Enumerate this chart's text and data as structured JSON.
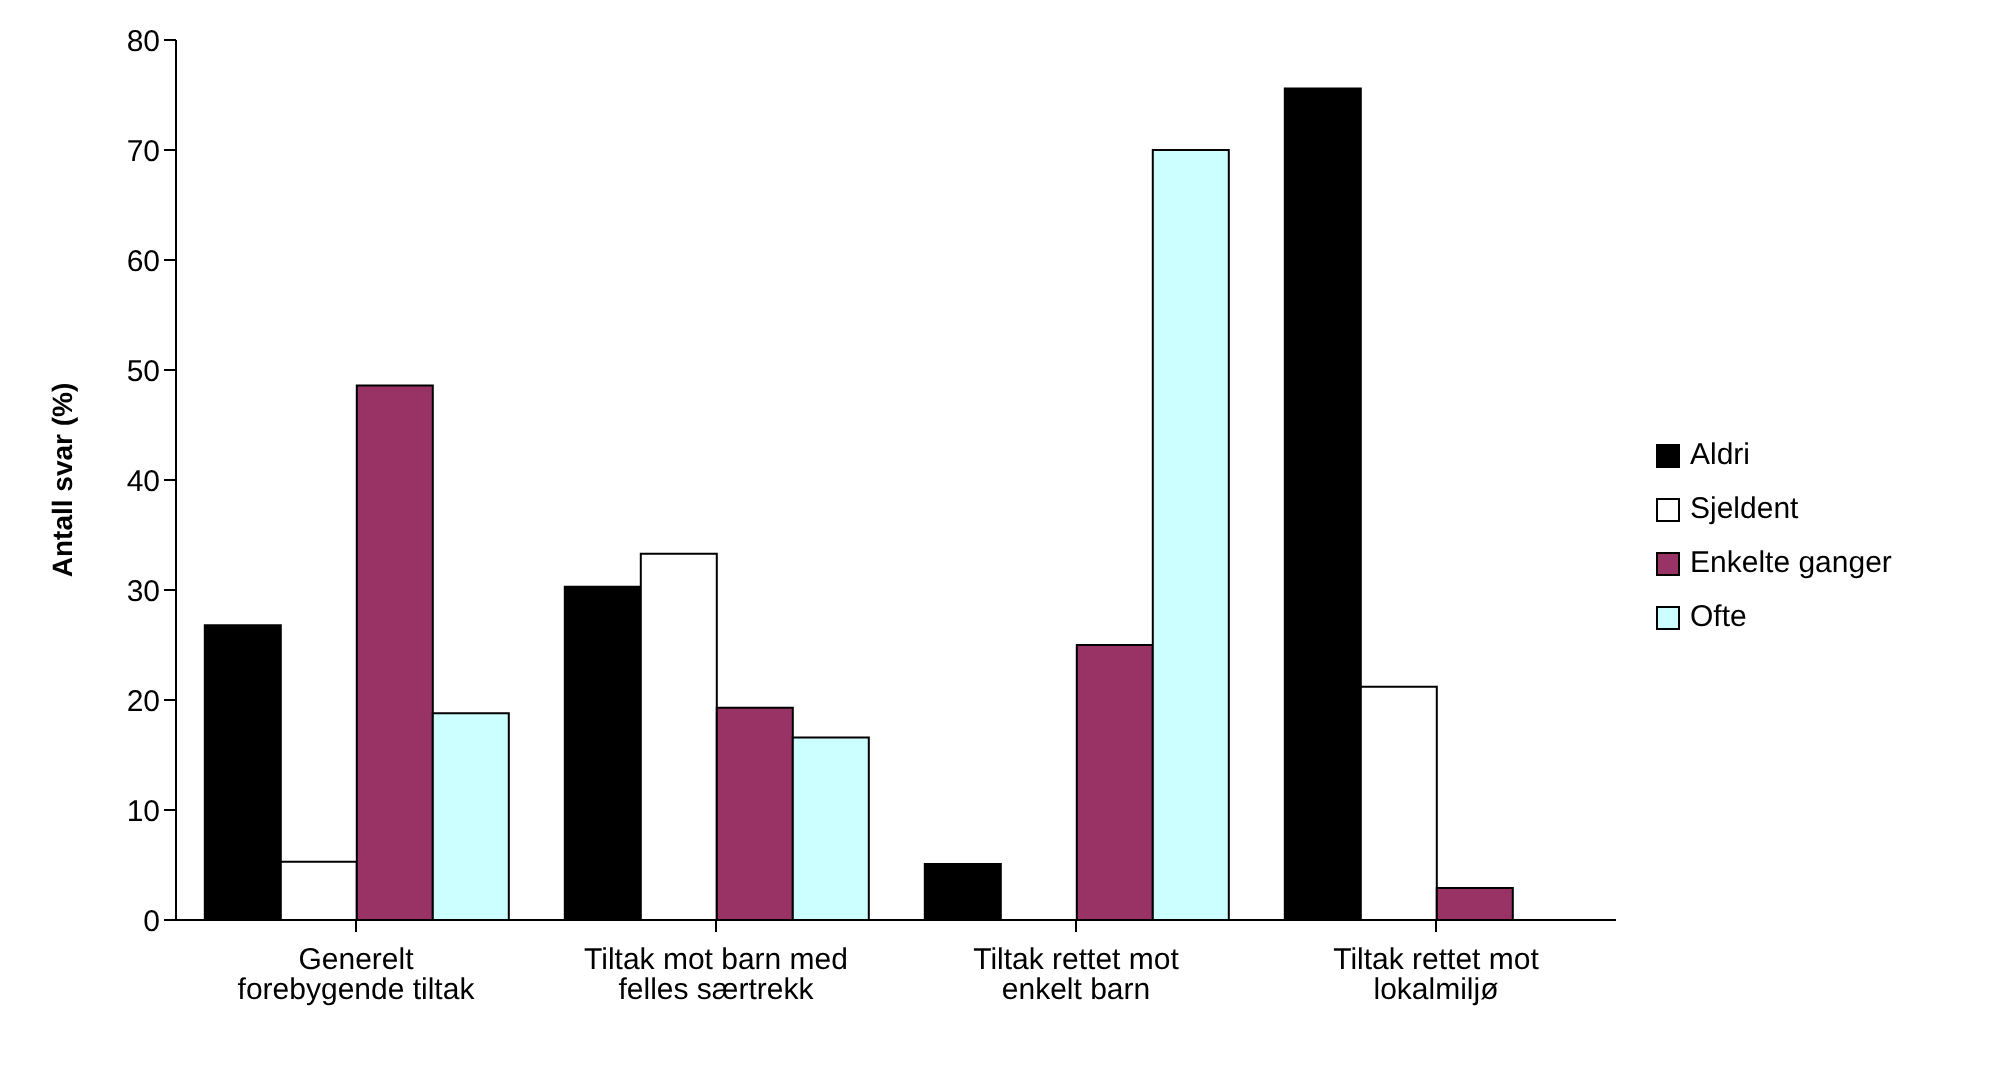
{
  "chart_data": {
    "type": "bar",
    "ylabel": "Antall svar (%)",
    "categories": [
      "Generelt forebygende tiltak",
      "Tiltak mot barn med felles særtrekk",
      "Tiltak rettet mot enkelt barn",
      "Tiltak rettet mot lokalmiljø"
    ],
    "series": [
      {
        "name": "Aldri",
        "color": "#000000",
        "values": [
          26.8,
          30.3,
          5.1,
          75.6
        ]
      },
      {
        "name": "Sjeldent",
        "color": "#ffffff",
        "values": [
          5.3,
          33.3,
          0,
          21.2
        ]
      },
      {
        "name": "Enkelte ganger",
        "color": "#993366",
        "values": [
          48.6,
          19.3,
          25,
          2.9
        ]
      },
      {
        "name": "Ofte",
        "color": "#ccffff",
        "values": [
          18.8,
          16.6,
          70,
          0
        ]
      }
    ],
    "ylim": [
      0,
      80
    ],
    "yticks": [
      0,
      10,
      20,
      30,
      40,
      50,
      60,
      70,
      80
    ],
    "grid": false,
    "legend": "right"
  }
}
